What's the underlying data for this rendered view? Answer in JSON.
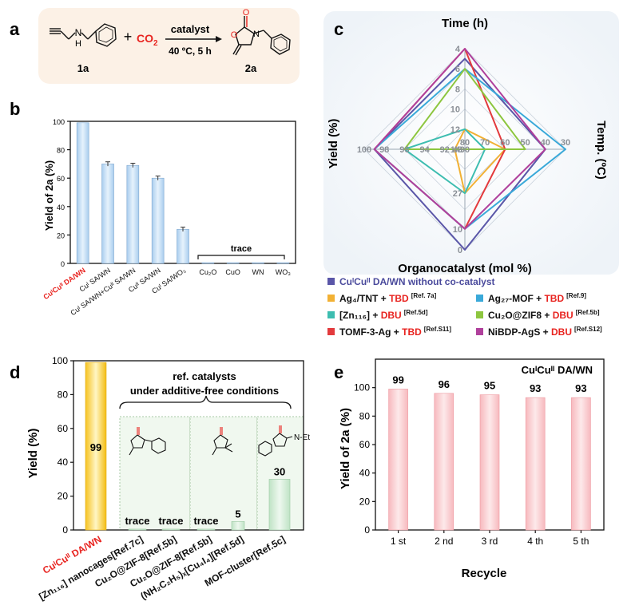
{
  "panels": {
    "a": {
      "label": "a",
      "reactant": "1a",
      "reactant_atoms": [
        "N",
        "H"
      ],
      "plus": "+",
      "co2": "CO",
      "co2_sub": "2",
      "catalyst": "catalyst",
      "conditions": "40 ºC, 5 h",
      "product": "2a",
      "product_atoms": [
        "O",
        "O",
        "N"
      ]
    }
  },
  "chart_data": [
    {
      "id": "b",
      "label": "b",
      "type": "bar",
      "ylabel": "Yield of 2a (%)",
      "ylim": [
        0,
        100
      ],
      "yticks": [
        0,
        20,
        40,
        60,
        80,
        100
      ],
      "categories": [
        "CuᴵCuᴵᴵ DA/WN",
        "Cuᴵ SA/WN",
        "Cuᴵ SA/WN+Cuᴵᴵ SA/WN",
        "Cuᴵᴵ SA/WN",
        "Cuᴵ SA/WO₃",
        "Cu₂O",
        "CuO",
        "WN",
        "WO₃"
      ],
      "values": [
        99,
        70,
        69,
        60,
        24,
        0.5,
        0.5,
        0.5,
        0.5
      ],
      "errors": [
        0,
        1.5,
        1.5,
        1.5,
        1.5,
        0,
        0,
        0,
        0
      ],
      "annotation": "trace",
      "highlight_color": "#e8231f",
      "bar_color": "#bcd7f0"
    },
    {
      "id": "c",
      "label": "c",
      "type": "radar",
      "axes": {
        "top": "Time (h)",
        "right": "Temp. (ºC)",
        "bottom": "Organocatalyst (mol %)",
        "left": "Yield (%)"
      },
      "time_ticks": [
        "4",
        "6",
        "8",
        "10",
        "12",
        "14"
      ],
      "temp_ticks": [
        "80",
        "70",
        "60",
        "50",
        "40",
        "30"
      ],
      "yield_ticks": [
        "100",
        "98",
        "96",
        "94",
        "92",
        "90"
      ],
      "cat_ticks": [
        "0",
        "10",
        "27",
        "48"
      ],
      "series": [
        {
          "name": "CuᴵCuᴵᴵ DA/WN without co-catalyst",
          "color": "#5a56a8",
          "time": 5,
          "temp": 40,
          "yield": 99,
          "cat": 0
        },
        {
          "name": "Ag₄/TNT + TBD",
          "ref": "[Ref. 7a]",
          "color": "#f2b134",
          "time": 12,
          "temp": 60,
          "yield": 91,
          "cat": 27
        },
        {
          "name": "[Zn₁₁₆] + DBU",
          "ref": "[Ref.5d]",
          "color": "#3dbdb0",
          "time": 12,
          "temp": 70,
          "yield": 96,
          "cat": 27
        },
        {
          "name": "TOMF-3-Ag + TBD",
          "ref": "[Ref.S11]",
          "color": "#e33a3d",
          "time": 4,
          "temp": 60,
          "yield": 99,
          "cat": 10
        },
        {
          "name": "Ag₂₇-MOF + TBD",
          "ref": "[Ref.9]",
          "color": "#3aa9d9",
          "time": 6,
          "temp": 30,
          "yield": 99,
          "cat": 10
        },
        {
          "name": "Cu₂O@ZIF8 + DBU",
          "ref": "[Ref.5b]",
          "color": "#8dc63f",
          "time": 6,
          "temp": 50,
          "yield": 96,
          "cat": 48
        },
        {
          "name": "NiBDP-AgS + DBU",
          "ref": "[Ref.S12]",
          "color": "#b0409c",
          "time": 4,
          "temp": 40,
          "yield": 99,
          "cat": 10
        }
      ]
    },
    {
      "id": "d",
      "label": "d",
      "type": "bar",
      "ylabel": "Yield (%)",
      "ylim": [
        0,
        100
      ],
      "yticks": [
        0,
        20,
        40,
        60,
        80,
        100
      ],
      "categories": [
        "CuᴵCuᴵᴵ DA/WN",
        "[Zn₁₁₆] nanocages[Ref.7c]",
        "Cu₂O@ZIF-8[Ref.5b]",
        "Cu₂O@ZIF-8[Ref.5b]",
        "(NH₂C₂H₅)ₓ[Cu₄I₄][Ref.5d]",
        "MOF-cluster[Ref.5c]"
      ],
      "values": [
        99,
        0.5,
        0.5,
        0.5,
        5,
        30
      ],
      "data_labels": [
        "99",
        "trace",
        "trace",
        "trace",
        "5",
        "30"
      ],
      "annotation_title": "ref. catalysts",
      "annotation_subtitle": "under additive-free conditions",
      "substituent": "Et",
      "highlight_color": "#e8231f"
    },
    {
      "id": "e",
      "label": "e",
      "type": "bar",
      "title": "CuᴵCuᴵᴵ DA/WN",
      "xlabel": "Recycle",
      "ylabel": "Yield of 2a (%)",
      "ylim": [
        0,
        120
      ],
      "yticks": [
        0,
        20,
        40,
        60,
        80,
        100
      ],
      "categories": [
        "1 st",
        "2 nd",
        "3 rd",
        "4 th",
        "5 th"
      ],
      "values": [
        99,
        96,
        95,
        93,
        93
      ]
    }
  ]
}
